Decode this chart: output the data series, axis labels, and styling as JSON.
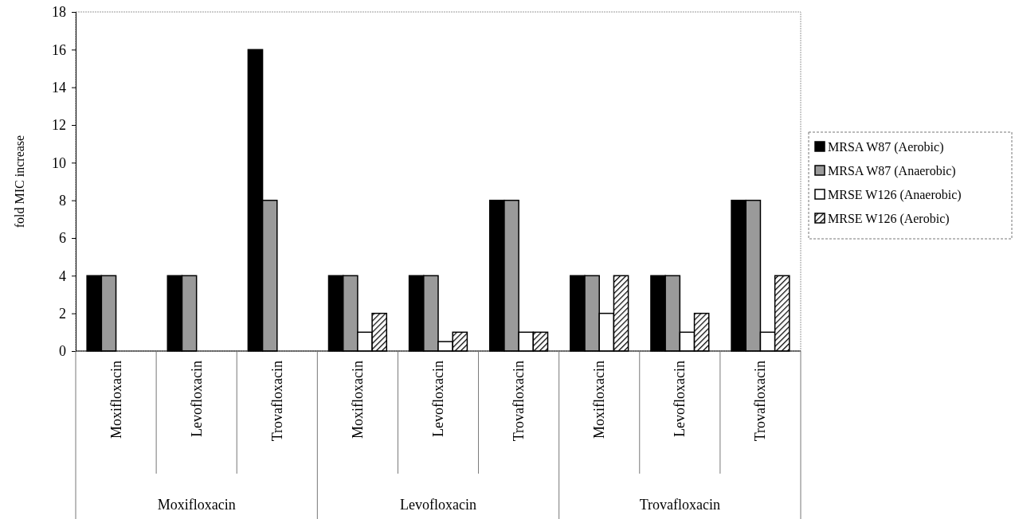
{
  "chart_data": {
    "type": "bar",
    "ylabel": "fold MIC increase",
    "categories": [
      "Moxifloxacin",
      "Levofloxacin",
      "Trovafloxacin",
      "Moxifloxacin",
      "Levofloxacin",
      "Trovafloxacin",
      "Moxifloxacin",
      "Levofloxacin",
      "Trovafloxacin"
    ],
    "annotations": [
      "Moxifloxacin",
      "Levofloxacin",
      "Trovafloxacin"
    ],
    "series": [
      {
        "name": "MRSA W87 (Aerobic)",
        "color": "#000000",
        "values": [
          4,
          4,
          16,
          4,
          4,
          8,
          4,
          4,
          8
        ]
      },
      {
        "name": "MRSA W87 (Anaerobic)",
        "color": "#9a9a9a",
        "values": [
          4,
          4,
          8,
          4,
          4,
          8,
          4,
          4,
          8
        ]
      },
      {
        "name": "MRSE W126 (Anaerobic)",
        "color": "#ffffff",
        "values": [
          null,
          null,
          null,
          1,
          0.5,
          1,
          2,
          1,
          1
        ]
      },
      {
        "name": "MRSE W126 (Aerobic)",
        "color": "#000000",
        "values": [
          null,
          null,
          null,
          2,
          1,
          1,
          4,
          2,
          4
        ]
      }
    ],
    "ylim": [
      0,
      18
    ],
    "yticks": [
      0,
      2,
      4,
      6,
      8,
      10,
      12,
      14,
      16,
      18
    ],
    "grid": false,
    "legend": "right"
  }
}
